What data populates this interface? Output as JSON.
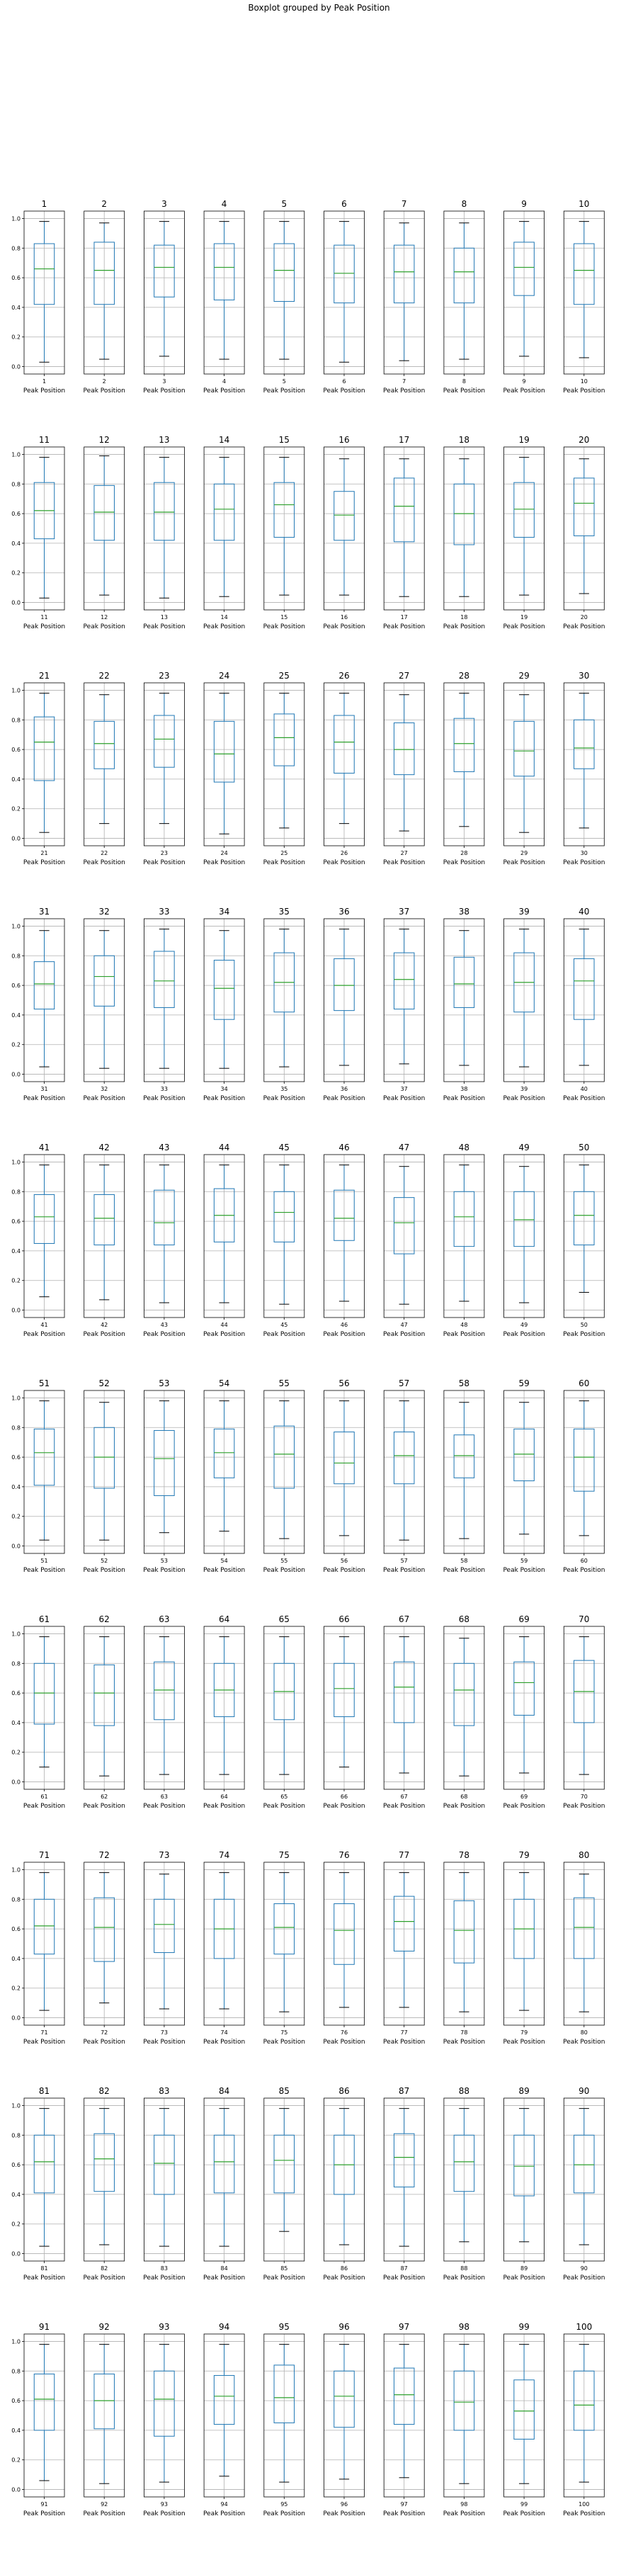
{
  "suptitle": "Boxplot grouped by Peak Position",
  "chart_data": {
    "type": "box",
    "title": "Boxplot grouped by Peak Position",
    "xlabel": "Peak Position",
    "ylim": [
      -0.05,
      1.05
    ],
    "yticks": [
      "0.0",
      "0.2",
      "0.4",
      "0.6",
      "0.8",
      "1.0"
    ],
    "grid": true,
    "colors": {
      "box": "#1f77b4",
      "median": "#2ca02c",
      "whisker_cap": "#000000",
      "axes": "#000000",
      "grid": "#b0b0b0"
    },
    "layout": {
      "rows": 10,
      "cols": 10
    },
    "panels": [
      {
        "title": "1",
        "whislo": 0.03,
        "q1": 0.42,
        "med": 0.66,
        "q3": 0.83,
        "whishi": 0.98
      },
      {
        "title": "2",
        "whislo": 0.05,
        "q1": 0.42,
        "med": 0.65,
        "q3": 0.84,
        "whishi": 0.97
      },
      {
        "title": "3",
        "whislo": 0.07,
        "q1": 0.47,
        "med": 0.67,
        "q3": 0.82,
        "whishi": 0.98
      },
      {
        "title": "4",
        "whislo": 0.05,
        "q1": 0.45,
        "med": 0.67,
        "q3": 0.83,
        "whishi": 0.98
      },
      {
        "title": "5",
        "whislo": 0.05,
        "q1": 0.44,
        "med": 0.65,
        "q3": 0.83,
        "whishi": 0.98
      },
      {
        "title": "6",
        "whislo": 0.03,
        "q1": 0.43,
        "med": 0.63,
        "q3": 0.82,
        "whishi": 0.98
      },
      {
        "title": "7",
        "whislo": 0.04,
        "q1": 0.43,
        "med": 0.64,
        "q3": 0.82,
        "whishi": 0.97
      },
      {
        "title": "8",
        "whislo": 0.05,
        "q1": 0.43,
        "med": 0.64,
        "q3": 0.8,
        "whishi": 0.97
      },
      {
        "title": "9",
        "whislo": 0.07,
        "q1": 0.48,
        "med": 0.67,
        "q3": 0.84,
        "whishi": 0.98
      },
      {
        "title": "10",
        "whislo": 0.06,
        "q1": 0.42,
        "med": 0.65,
        "q3": 0.83,
        "whishi": 0.98
      },
      {
        "title": "11",
        "whislo": 0.03,
        "q1": 0.43,
        "med": 0.62,
        "q3": 0.81,
        "whishi": 0.98
      },
      {
        "title": "12",
        "whislo": 0.05,
        "q1": 0.42,
        "med": 0.61,
        "q3": 0.79,
        "whishi": 0.99
      },
      {
        "title": "13",
        "whislo": 0.03,
        "q1": 0.42,
        "med": 0.61,
        "q3": 0.81,
        "whishi": 0.98
      },
      {
        "title": "14",
        "whislo": 0.04,
        "q1": 0.42,
        "med": 0.63,
        "q3": 0.8,
        "whishi": 0.98
      },
      {
        "title": "15",
        "whislo": 0.05,
        "q1": 0.44,
        "med": 0.66,
        "q3": 0.81,
        "whishi": 0.98
      },
      {
        "title": "16",
        "whislo": 0.05,
        "q1": 0.42,
        "med": 0.59,
        "q3": 0.75,
        "whishi": 0.97
      },
      {
        "title": "17",
        "whislo": 0.04,
        "q1": 0.41,
        "med": 0.65,
        "q3": 0.84,
        "whishi": 0.97
      },
      {
        "title": "18",
        "whislo": 0.04,
        "q1": 0.39,
        "med": 0.6,
        "q3": 0.8,
        "whishi": 0.97
      },
      {
        "title": "19",
        "whislo": 0.05,
        "q1": 0.44,
        "med": 0.63,
        "q3": 0.81,
        "whishi": 0.98
      },
      {
        "title": "20",
        "whislo": 0.06,
        "q1": 0.45,
        "med": 0.67,
        "q3": 0.84,
        "whishi": 0.97
      },
      {
        "title": "21",
        "whislo": 0.04,
        "q1": 0.39,
        "med": 0.65,
        "q3": 0.82,
        "whishi": 0.98
      },
      {
        "title": "22",
        "whislo": 0.1,
        "q1": 0.47,
        "med": 0.64,
        "q3": 0.79,
        "whishi": 0.97
      },
      {
        "title": "23",
        "whislo": 0.1,
        "q1": 0.48,
        "med": 0.67,
        "q3": 0.83,
        "whishi": 0.98
      },
      {
        "title": "24",
        "whislo": 0.03,
        "q1": 0.38,
        "med": 0.57,
        "q3": 0.79,
        "whishi": 0.98
      },
      {
        "title": "25",
        "whislo": 0.07,
        "q1": 0.49,
        "med": 0.68,
        "q3": 0.84,
        "whishi": 0.98
      },
      {
        "title": "26",
        "whislo": 0.1,
        "q1": 0.44,
        "med": 0.65,
        "q3": 0.83,
        "whishi": 0.98
      },
      {
        "title": "27",
        "whislo": 0.05,
        "q1": 0.43,
        "med": 0.6,
        "q3": 0.78,
        "whishi": 0.97
      },
      {
        "title": "28",
        "whislo": 0.08,
        "q1": 0.45,
        "med": 0.64,
        "q3": 0.81,
        "whishi": 0.98
      },
      {
        "title": "29",
        "whislo": 0.04,
        "q1": 0.42,
        "med": 0.59,
        "q3": 0.79,
        "whishi": 0.97
      },
      {
        "title": "30",
        "whislo": 0.07,
        "q1": 0.47,
        "med": 0.61,
        "q3": 0.8,
        "whishi": 0.98
      },
      {
        "title": "31",
        "whislo": 0.05,
        "q1": 0.44,
        "med": 0.61,
        "q3": 0.76,
        "whishi": 0.97
      },
      {
        "title": "32",
        "whislo": 0.04,
        "q1": 0.46,
        "med": 0.66,
        "q3": 0.8,
        "whishi": 0.97
      },
      {
        "title": "33",
        "whislo": 0.04,
        "q1": 0.45,
        "med": 0.63,
        "q3": 0.83,
        "whishi": 0.98
      },
      {
        "title": "34",
        "whislo": 0.04,
        "q1": 0.37,
        "med": 0.58,
        "q3": 0.77,
        "whishi": 0.97
      },
      {
        "title": "35",
        "whislo": 0.05,
        "q1": 0.42,
        "med": 0.62,
        "q3": 0.82,
        "whishi": 0.98
      },
      {
        "title": "36",
        "whislo": 0.06,
        "q1": 0.43,
        "med": 0.6,
        "q3": 0.78,
        "whishi": 0.98
      },
      {
        "title": "37",
        "whislo": 0.07,
        "q1": 0.44,
        "med": 0.64,
        "q3": 0.82,
        "whishi": 0.98
      },
      {
        "title": "38",
        "whislo": 0.06,
        "q1": 0.45,
        "med": 0.61,
        "q3": 0.79,
        "whishi": 0.97
      },
      {
        "title": "39",
        "whislo": 0.05,
        "q1": 0.42,
        "med": 0.62,
        "q3": 0.82,
        "whishi": 0.98
      },
      {
        "title": "40",
        "whislo": 0.06,
        "q1": 0.37,
        "med": 0.63,
        "q3": 0.78,
        "whishi": 0.98
      },
      {
        "title": "41",
        "whislo": 0.09,
        "q1": 0.45,
        "med": 0.63,
        "q3": 0.78,
        "whishi": 0.98
      },
      {
        "title": "42",
        "whislo": 0.07,
        "q1": 0.44,
        "med": 0.62,
        "q3": 0.78,
        "whishi": 0.98
      },
      {
        "title": "43",
        "whislo": 0.05,
        "q1": 0.44,
        "med": 0.59,
        "q3": 0.81,
        "whishi": 0.98
      },
      {
        "title": "44",
        "whislo": 0.05,
        "q1": 0.46,
        "med": 0.64,
        "q3": 0.82,
        "whishi": 0.98
      },
      {
        "title": "45",
        "whislo": 0.04,
        "q1": 0.46,
        "med": 0.66,
        "q3": 0.8,
        "whishi": 0.98
      },
      {
        "title": "46",
        "whislo": 0.06,
        "q1": 0.47,
        "med": 0.62,
        "q3": 0.81,
        "whishi": 0.98
      },
      {
        "title": "47",
        "whislo": 0.04,
        "q1": 0.38,
        "med": 0.59,
        "q3": 0.76,
        "whishi": 0.97
      },
      {
        "title": "48",
        "whislo": 0.06,
        "q1": 0.43,
        "med": 0.63,
        "q3": 0.8,
        "whishi": 0.98
      },
      {
        "title": "49",
        "whislo": 0.05,
        "q1": 0.43,
        "med": 0.61,
        "q3": 0.8,
        "whishi": 0.97
      },
      {
        "title": "50",
        "whislo": 0.12,
        "q1": 0.44,
        "med": 0.64,
        "q3": 0.8,
        "whishi": 0.98
      },
      {
        "title": "51",
        "whislo": 0.04,
        "q1": 0.41,
        "med": 0.63,
        "q3": 0.79,
        "whishi": 0.98
      },
      {
        "title": "52",
        "whislo": 0.04,
        "q1": 0.39,
        "med": 0.6,
        "q3": 0.8,
        "whishi": 0.97
      },
      {
        "title": "53",
        "whislo": 0.09,
        "q1": 0.34,
        "med": 0.59,
        "q3": 0.78,
        "whishi": 0.98
      },
      {
        "title": "54",
        "whislo": 0.1,
        "q1": 0.46,
        "med": 0.63,
        "q3": 0.79,
        "whishi": 0.98
      },
      {
        "title": "55",
        "whislo": 0.05,
        "q1": 0.39,
        "med": 0.62,
        "q3": 0.81,
        "whishi": 0.98
      },
      {
        "title": "56",
        "whislo": 0.07,
        "q1": 0.42,
        "med": 0.56,
        "q3": 0.77,
        "whishi": 0.98
      },
      {
        "title": "57",
        "whislo": 0.04,
        "q1": 0.42,
        "med": 0.61,
        "q3": 0.77,
        "whishi": 0.98
      },
      {
        "title": "58",
        "whislo": 0.05,
        "q1": 0.46,
        "med": 0.61,
        "q3": 0.75,
        "whishi": 0.97
      },
      {
        "title": "59",
        "whislo": 0.08,
        "q1": 0.44,
        "med": 0.62,
        "q3": 0.79,
        "whishi": 0.97
      },
      {
        "title": "60",
        "whislo": 0.07,
        "q1": 0.37,
        "med": 0.6,
        "q3": 0.79,
        "whishi": 0.98
      },
      {
        "title": "61",
        "whislo": 0.1,
        "q1": 0.39,
        "med": 0.6,
        "q3": 0.8,
        "whishi": 0.98
      },
      {
        "title": "62",
        "whislo": 0.04,
        "q1": 0.38,
        "med": 0.6,
        "q3": 0.79,
        "whishi": 0.98
      },
      {
        "title": "63",
        "whislo": 0.05,
        "q1": 0.42,
        "med": 0.62,
        "q3": 0.81,
        "whishi": 0.98
      },
      {
        "title": "64",
        "whislo": 0.05,
        "q1": 0.44,
        "med": 0.62,
        "q3": 0.8,
        "whishi": 0.98
      },
      {
        "title": "65",
        "whislo": 0.05,
        "q1": 0.42,
        "med": 0.61,
        "q3": 0.8,
        "whishi": 0.98
      },
      {
        "title": "66",
        "whislo": 0.1,
        "q1": 0.44,
        "med": 0.63,
        "q3": 0.8,
        "whishi": 0.98
      },
      {
        "title": "67",
        "whislo": 0.06,
        "q1": 0.4,
        "med": 0.64,
        "q3": 0.81,
        "whishi": 0.98
      },
      {
        "title": "68",
        "whislo": 0.04,
        "q1": 0.38,
        "med": 0.62,
        "q3": 0.8,
        "whishi": 0.97
      },
      {
        "title": "69",
        "whislo": 0.06,
        "q1": 0.45,
        "med": 0.67,
        "q3": 0.81,
        "whishi": 0.98
      },
      {
        "title": "70",
        "whislo": 0.05,
        "q1": 0.4,
        "med": 0.61,
        "q3": 0.82,
        "whishi": 0.98
      },
      {
        "title": "71",
        "whislo": 0.05,
        "q1": 0.43,
        "med": 0.62,
        "q3": 0.8,
        "whishi": 0.98
      },
      {
        "title": "72",
        "whislo": 0.1,
        "q1": 0.38,
        "med": 0.61,
        "q3": 0.81,
        "whishi": 0.98
      },
      {
        "title": "73",
        "whislo": 0.06,
        "q1": 0.44,
        "med": 0.63,
        "q3": 0.8,
        "whishi": 0.97
      },
      {
        "title": "74",
        "whislo": 0.06,
        "q1": 0.4,
        "med": 0.6,
        "q3": 0.8,
        "whishi": 0.98
      },
      {
        "title": "75",
        "whislo": 0.04,
        "q1": 0.43,
        "med": 0.61,
        "q3": 0.77,
        "whishi": 0.98
      },
      {
        "title": "76",
        "whislo": 0.07,
        "q1": 0.36,
        "med": 0.59,
        "q3": 0.77,
        "whishi": 0.98
      },
      {
        "title": "77",
        "whislo": 0.07,
        "q1": 0.45,
        "med": 0.65,
        "q3": 0.82,
        "whishi": 0.98
      },
      {
        "title": "78",
        "whislo": 0.04,
        "q1": 0.37,
        "med": 0.59,
        "q3": 0.79,
        "whishi": 0.98
      },
      {
        "title": "79",
        "whislo": 0.05,
        "q1": 0.4,
        "med": 0.6,
        "q3": 0.8,
        "whishi": 0.98
      },
      {
        "title": "80",
        "whislo": 0.04,
        "q1": 0.4,
        "med": 0.61,
        "q3": 0.81,
        "whishi": 0.97
      },
      {
        "title": "81",
        "whislo": 0.05,
        "q1": 0.41,
        "med": 0.62,
        "q3": 0.8,
        "whishi": 0.98
      },
      {
        "title": "82",
        "whislo": 0.06,
        "q1": 0.42,
        "med": 0.64,
        "q3": 0.81,
        "whishi": 0.98
      },
      {
        "title": "83",
        "whislo": 0.05,
        "q1": 0.4,
        "med": 0.61,
        "q3": 0.8,
        "whishi": 0.98
      },
      {
        "title": "84",
        "whislo": 0.05,
        "q1": 0.41,
        "med": 0.62,
        "q3": 0.8,
        "whishi": 0.98
      },
      {
        "title": "85",
        "whislo": 0.15,
        "q1": 0.41,
        "med": 0.63,
        "q3": 0.8,
        "whishi": 0.98
      },
      {
        "title": "86",
        "whislo": 0.06,
        "q1": 0.4,
        "med": 0.6,
        "q3": 0.8,
        "whishi": 0.98
      },
      {
        "title": "87",
        "whislo": 0.05,
        "q1": 0.45,
        "med": 0.65,
        "q3": 0.81,
        "whishi": 0.98
      },
      {
        "title": "88",
        "whislo": 0.08,
        "q1": 0.42,
        "med": 0.62,
        "q3": 0.8,
        "whishi": 0.98
      },
      {
        "title": "89",
        "whislo": 0.08,
        "q1": 0.39,
        "med": 0.59,
        "q3": 0.8,
        "whishi": 0.98
      },
      {
        "title": "90",
        "whislo": 0.06,
        "q1": 0.41,
        "med": 0.6,
        "q3": 0.8,
        "whishi": 0.98
      },
      {
        "title": "91",
        "whislo": 0.06,
        "q1": 0.4,
        "med": 0.61,
        "q3": 0.78,
        "whishi": 0.98
      },
      {
        "title": "92",
        "whislo": 0.04,
        "q1": 0.41,
        "med": 0.6,
        "q3": 0.78,
        "whishi": 0.98
      },
      {
        "title": "93",
        "whislo": 0.05,
        "q1": 0.36,
        "med": 0.61,
        "q3": 0.8,
        "whishi": 0.98
      },
      {
        "title": "94",
        "whislo": 0.09,
        "q1": 0.44,
        "med": 0.63,
        "q3": 0.77,
        "whishi": 0.98
      },
      {
        "title": "95",
        "whislo": 0.05,
        "q1": 0.45,
        "med": 0.62,
        "q3": 0.84,
        "whishi": 0.98
      },
      {
        "title": "96",
        "whislo": 0.07,
        "q1": 0.42,
        "med": 0.63,
        "q3": 0.8,
        "whishi": 0.98
      },
      {
        "title": "97",
        "whislo": 0.08,
        "q1": 0.44,
        "med": 0.64,
        "q3": 0.82,
        "whishi": 0.98
      },
      {
        "title": "98",
        "whislo": 0.04,
        "q1": 0.4,
        "med": 0.59,
        "q3": 0.8,
        "whishi": 0.98
      },
      {
        "title": "99",
        "whislo": 0.04,
        "q1": 0.34,
        "med": 0.53,
        "q3": 0.74,
        "whishi": 0.98
      },
      {
        "title": "100",
        "whislo": 0.05,
        "q1": 0.4,
        "med": 0.57,
        "q3": 0.8,
        "whishi": 0.98
      }
    ]
  }
}
